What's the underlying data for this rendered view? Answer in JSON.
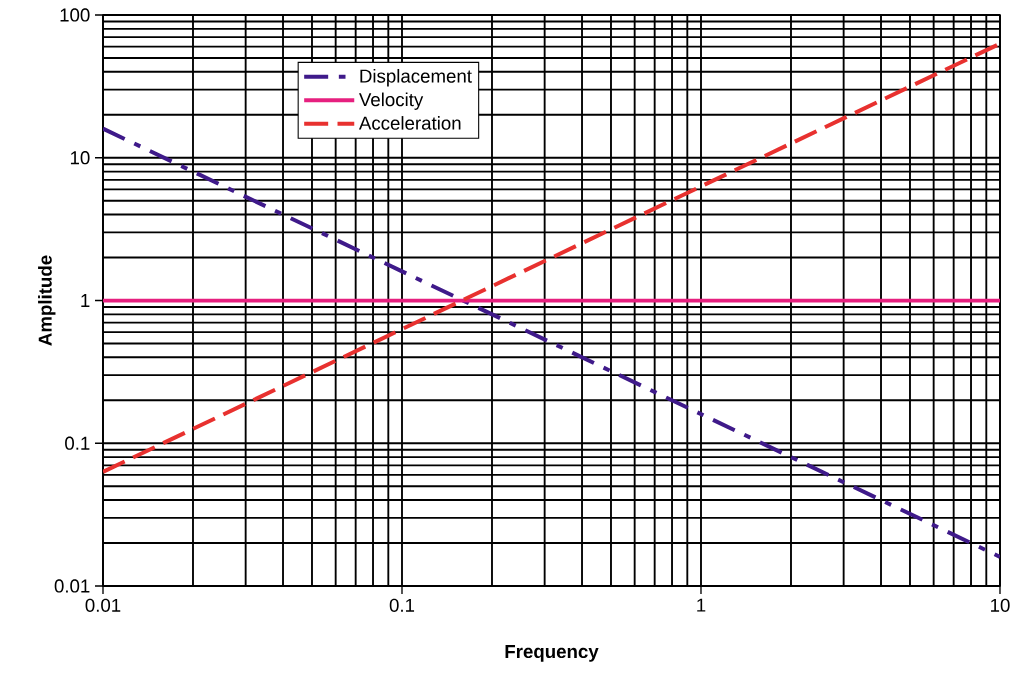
{
  "chart_data": {
    "type": "line",
    "xlabel": "Frequency",
    "ylabel": "Amplitude",
    "log": "xy",
    "grid": true,
    "legend": "top left",
    "x": [
      0.01,
      0.1,
      1,
      10
    ],
    "xlim": [
      0.01,
      10
    ],
    "xticks": [
      0.01,
      0.1,
      1,
      10
    ],
    "ylim": [
      0.01,
      100
    ],
    "yticks": [
      0.01,
      0.1,
      1,
      10,
      100
    ],
    "series": [
      {
        "name": "Displacement",
        "color": "#3f1a8a",
        "line_style": "dashdotted",
        "values": [
          16,
          1.6,
          0.16,
          0.016
        ]
      },
      {
        "name": "Velocity",
        "color": "#e6207f",
        "line_style": "solid",
        "values": [
          1,
          1,
          1,
          1
        ]
      },
      {
        "name": "Acceleration",
        "color": "#e8312f",
        "line_style": "dashed",
        "values": [
          0.063,
          0.63,
          6.3,
          63
        ]
      }
    ]
  }
}
